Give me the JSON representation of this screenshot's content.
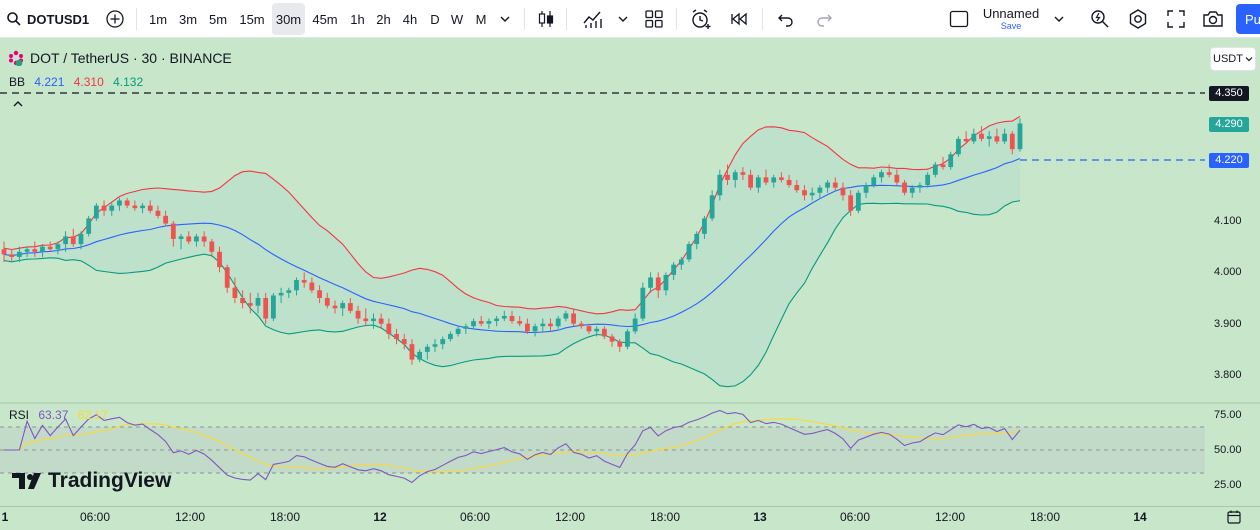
{
  "toolbar": {
    "symbol": "DOTUSD1",
    "intervals": [
      "1m",
      "3m",
      "5m",
      "15m",
      "30m",
      "45m",
      "1h",
      "2h",
      "4h",
      "D",
      "W",
      "M"
    ],
    "active_interval": "30m",
    "layout_name": "Unnamed",
    "save_label": "Save",
    "publish_label": "Pu"
  },
  "legend": {
    "title": "DOT / TetherUS · 30 · BINANCE",
    "bb_label": "BB",
    "bb_values": [
      "4.221",
      "4.310",
      "4.132"
    ],
    "rsi_label": "RSI",
    "rsi_values": [
      "63.37",
      "62.17"
    ]
  },
  "currency_selector": "USDT",
  "watermark": "TradingView",
  "colors": {
    "bg": "#c8e6c9",
    "up": "#26a69a",
    "down": "#ef5350",
    "bb_basis": "#2962ff",
    "bb_upper": "#f23645",
    "bb_lower": "#089981",
    "rsi_line": "#7e57c2",
    "rsi_ma": "#fdd835"
  },
  "price_axis": {
    "ticks": [
      "4.100",
      "4.000",
      "3.900",
      "3.800"
    ],
    "alert_price": "4.350",
    "last_price": "4.290",
    "basis_price": "4.220"
  },
  "rsi_axis": {
    "ticks": [
      "75.00",
      "50.00",
      "25.00"
    ]
  },
  "time_axis": {
    "labels": [
      "1",
      "06:00",
      "12:00",
      "18:00",
      "12",
      "06:00",
      "12:00",
      "18:00",
      "13",
      "06:00",
      "12:00",
      "18:00",
      "14"
    ]
  },
  "chart_data": {
    "type": "candlestick",
    "title": "DOT / TetherUS · 30 · BINANCE",
    "ylim": [
      3.76,
      4.37
    ],
    "candles": [
      [
        4.045,
        4.06,
        4.02,
        4.035
      ],
      [
        4.035,
        4.045,
        4.02,
        4.03
      ],
      [
        4.03,
        4.05,
        4.02,
        4.04
      ],
      [
        4.04,
        4.05,
        4.03,
        4.045
      ],
      [
        4.045,
        4.06,
        4.03,
        4.04
      ],
      [
        4.04,
        4.055,
        4.03,
        4.05
      ],
      [
        4.05,
        4.06,
        4.04,
        4.045
      ],
      [
        4.045,
        4.06,
        4.035,
        4.055
      ],
      [
        4.055,
        4.08,
        4.04,
        4.07
      ],
      [
        4.07,
        4.085,
        4.05,
        4.055
      ],
      [
        4.055,
        4.08,
        4.045,
        4.075
      ],
      [
        4.075,
        4.11,
        4.07,
        4.105
      ],
      [
        4.105,
        4.135,
        4.1,
        4.13
      ],
      [
        4.13,
        4.14,
        4.11,
        4.12
      ],
      [
        4.12,
        4.135,
        4.11,
        4.13
      ],
      [
        4.13,
        4.145,
        4.12,
        4.14
      ],
      [
        4.14,
        4.145,
        4.125,
        4.13
      ],
      [
        4.13,
        4.14,
        4.12,
        4.125
      ],
      [
        4.125,
        4.135,
        4.115,
        4.13
      ],
      [
        4.13,
        4.14,
        4.115,
        4.12
      ],
      [
        4.12,
        4.13,
        4.105,
        4.11
      ],
      [
        4.11,
        4.12,
        4.09,
        4.095
      ],
      [
        4.095,
        4.1,
        4.05,
        4.065
      ],
      [
        4.065,
        4.075,
        4.045,
        4.07
      ],
      [
        4.07,
        4.08,
        4.055,
        4.06
      ],
      [
        4.06,
        4.075,
        4.05,
        4.07
      ],
      [
        4.07,
        4.08,
        4.05,
        4.06
      ],
      [
        4.06,
        4.065,
        4.03,
        4.04
      ],
      [
        4.04,
        4.05,
        4.0,
        4.01
      ],
      [
        4.01,
        4.015,
        3.96,
        3.97
      ],
      [
        3.97,
        3.99,
        3.94,
        3.95
      ],
      [
        3.95,
        3.965,
        3.93,
        3.94
      ],
      [
        3.94,
        3.96,
        3.92,
        3.935
      ],
      [
        3.935,
        3.96,
        3.92,
        3.95
      ],
      [
        3.95,
        3.96,
        3.9,
        3.91
      ],
      [
        3.91,
        3.96,
        3.905,
        3.955
      ],
      [
        3.955,
        3.97,
        3.94,
        3.96
      ],
      [
        3.96,
        3.97,
        3.95,
        3.965
      ],
      [
        3.965,
        3.99,
        3.955,
        3.985
      ],
      [
        3.985,
        4.0,
        3.97,
        3.98
      ],
      [
        3.98,
        3.99,
        3.96,
        3.965
      ],
      [
        3.965,
        3.975,
        3.94,
        3.95
      ],
      [
        3.95,
        3.96,
        3.93,
        3.935
      ],
      [
        3.935,
        3.945,
        3.92,
        3.93
      ],
      [
        3.93,
        3.945,
        3.915,
        3.94
      ],
      [
        3.94,
        3.95,
        3.92,
        3.925
      ],
      [
        3.925,
        3.935,
        3.9,
        3.91
      ],
      [
        3.91,
        3.93,
        3.895,
        3.905
      ],
      [
        3.905,
        3.92,
        3.89,
        3.91
      ],
      [
        3.91,
        3.92,
        3.89,
        3.9
      ],
      [
        3.9,
        3.91,
        3.87,
        3.88
      ],
      [
        3.88,
        3.89,
        3.86,
        3.87
      ],
      [
        3.87,
        3.88,
        3.85,
        3.86
      ],
      [
        3.86,
        3.87,
        3.82,
        3.83
      ],
      [
        3.83,
        3.85,
        3.825,
        3.845
      ],
      [
        3.845,
        3.86,
        3.83,
        3.855
      ],
      [
        3.855,
        3.87,
        3.845,
        3.86
      ],
      [
        3.86,
        3.875,
        3.85,
        3.87
      ],
      [
        3.87,
        3.885,
        3.865,
        3.88
      ],
      [
        3.88,
        3.895,
        3.875,
        3.89
      ],
      [
        3.89,
        3.9,
        3.88,
        3.895
      ],
      [
        3.895,
        3.91,
        3.89,
        3.905
      ],
      [
        3.905,
        3.915,
        3.895,
        3.9
      ],
      [
        3.9,
        3.91,
        3.89,
        3.905
      ],
      [
        3.905,
        3.915,
        3.895,
        3.91
      ],
      [
        3.91,
        3.925,
        3.905,
        3.915
      ],
      [
        3.915,
        3.925,
        3.9,
        3.905
      ],
      [
        3.905,
        3.915,
        3.895,
        3.9
      ],
      [
        3.9,
        3.91,
        3.88,
        3.885
      ],
      [
        3.885,
        3.9,
        3.875,
        3.895
      ],
      [
        3.895,
        3.91,
        3.885,
        3.9
      ],
      [
        3.9,
        3.91,
        3.885,
        3.895
      ],
      [
        3.895,
        3.915,
        3.89,
        3.91
      ],
      [
        3.91,
        3.925,
        3.905,
        3.92
      ],
      [
        3.92,
        3.93,
        3.895,
        3.9
      ],
      [
        3.9,
        3.905,
        3.89,
        3.895
      ],
      [
        3.895,
        3.9,
        3.88,
        3.885
      ],
      [
        3.885,
        3.895,
        3.875,
        3.89
      ],
      [
        3.89,
        3.895,
        3.87,
        3.875
      ],
      [
        3.875,
        3.88,
        3.855,
        3.865
      ],
      [
        3.865,
        3.87,
        3.845,
        3.855
      ],
      [
        3.855,
        3.89,
        3.85,
        3.885
      ],
      [
        3.885,
        3.92,
        3.88,
        3.91
      ],
      [
        3.91,
        3.98,
        3.905,
        3.97
      ],
      [
        3.97,
        4.0,
        3.96,
        3.99
      ],
      [
        3.99,
        4.0,
        3.95,
        3.965
      ],
      [
        3.965,
        4.0,
        3.955,
        3.995
      ],
      [
        3.995,
        4.02,
        3.985,
        4.015
      ],
      [
        4.015,
        4.03,
        4.005,
        4.025
      ],
      [
        4.025,
        4.06,
        4.02,
        4.055
      ],
      [
        4.055,
        4.08,
        4.045,
        4.075
      ],
      [
        4.075,
        4.11,
        4.065,
        4.105
      ],
      [
        4.105,
        4.16,
        4.1,
        4.15
      ],
      [
        4.15,
        4.2,
        4.14,
        4.19
      ],
      [
        4.19,
        4.21,
        4.17,
        4.18
      ],
      [
        4.18,
        4.2,
        4.165,
        4.195
      ],
      [
        4.195,
        4.205,
        4.18,
        4.19
      ],
      [
        4.19,
        4.2,
        4.16,
        4.165
      ],
      [
        4.165,
        4.19,
        4.155,
        4.185
      ],
      [
        4.185,
        4.2,
        4.17,
        4.175
      ],
      [
        4.175,
        4.19,
        4.165,
        4.185
      ],
      [
        4.185,
        4.195,
        4.175,
        4.18
      ],
      [
        4.18,
        4.19,
        4.165,
        4.17
      ],
      [
        4.17,
        4.18,
        4.155,
        4.16
      ],
      [
        4.16,
        4.17,
        4.14,
        4.15
      ],
      [
        4.15,
        4.165,
        4.14,
        4.155
      ],
      [
        4.155,
        4.17,
        4.145,
        4.165
      ],
      [
        4.165,
        4.18,
        4.155,
        4.175
      ],
      [
        4.175,
        4.185,
        4.16,
        4.165
      ],
      [
        4.165,
        4.175,
        4.14,
        4.15
      ],
      [
        4.15,
        4.16,
        4.11,
        4.12
      ],
      [
        4.12,
        4.16,
        4.115,
        4.155
      ],
      [
        4.155,
        4.175,
        4.145,
        4.17
      ],
      [
        4.17,
        4.19,
        4.165,
        4.185
      ],
      [
        4.185,
        4.2,
        4.175,
        4.195
      ],
      [
        4.195,
        4.21,
        4.185,
        4.19
      ],
      [
        4.19,
        4.2,
        4.17,
        4.175
      ],
      [
        4.175,
        4.18,
        4.15,
        4.155
      ],
      [
        4.155,
        4.17,
        4.145,
        4.165
      ],
      [
        4.165,
        4.175,
        4.155,
        4.17
      ],
      [
        4.17,
        4.195,
        4.165,
        4.19
      ],
      [
        4.19,
        4.215,
        4.185,
        4.21
      ],
      [
        4.21,
        4.225,
        4.2,
        4.205
      ],
      [
        4.205,
        4.235,
        4.2,
        4.23
      ],
      [
        4.23,
        4.265,
        4.225,
        4.26
      ],
      [
        4.26,
        4.275,
        4.25,
        4.255
      ],
      [
        4.255,
        4.28,
        4.25,
        4.27
      ],
      [
        4.27,
        4.285,
        4.255,
        4.26
      ],
      [
        4.26,
        4.275,
        4.245,
        4.265
      ],
      [
        4.265,
        4.28,
        4.25,
        4.255
      ],
      [
        4.255,
        4.28,
        4.25,
        4.27
      ],
      [
        4.27,
        4.275,
        4.23,
        4.24
      ],
      [
        4.24,
        4.3,
        4.235,
        4.29
      ]
    ],
    "bollinger": {
      "basis": 4.221,
      "upper": 4.31,
      "lower": 4.132
    },
    "rsi": {
      "value": 63.37,
      "ma": 62.17,
      "bands": [
        70,
        50,
        30
      ]
    }
  }
}
